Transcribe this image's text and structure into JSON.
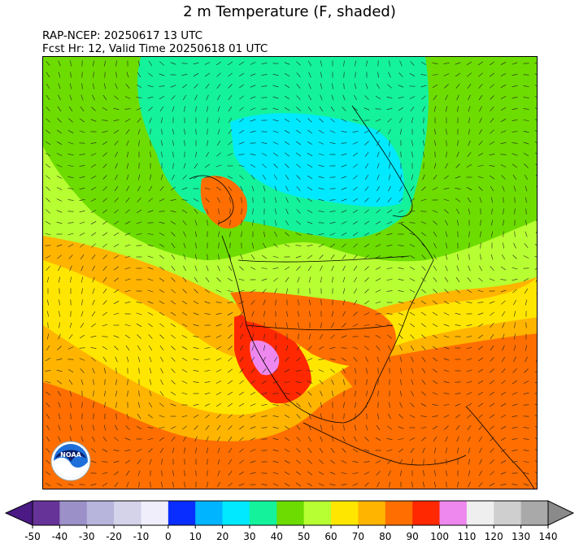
{
  "title": "2 m Temperature (F, shaded)",
  "model_line": "RAP-NCEP: 20250617 13 UTC",
  "forecast_line": "Fcst Hr: 12, Valid Time 20250618 01 UTC",
  "logo_text": "NOAA",
  "colorbar": {
    "ticks": [
      "-50",
      "-40",
      "-30",
      "-20",
      "-10",
      "0",
      "10",
      "20",
      "30",
      "40",
      "50",
      "60",
      "70",
      "80",
      "90",
      "100",
      "110",
      "120",
      "130",
      "140"
    ],
    "colors": [
      "#663399",
      "#9b90c8",
      "#b7b5dc",
      "#d4d3ea",
      "#efeefa",
      "#0a2dff",
      "#00b4ff",
      "#00e9ff",
      "#14f29c",
      "#6ddc00",
      "#b7ff32",
      "#ffe600",
      "#ffb400",
      "#ff6e00",
      "#ff2800",
      "#ee88ee",
      "#efefef",
      "#cfcfcf",
      "#a9a9a9"
    ],
    "under_color": "#4b1a85",
    "over_color": "#8a8a8a"
  }
}
